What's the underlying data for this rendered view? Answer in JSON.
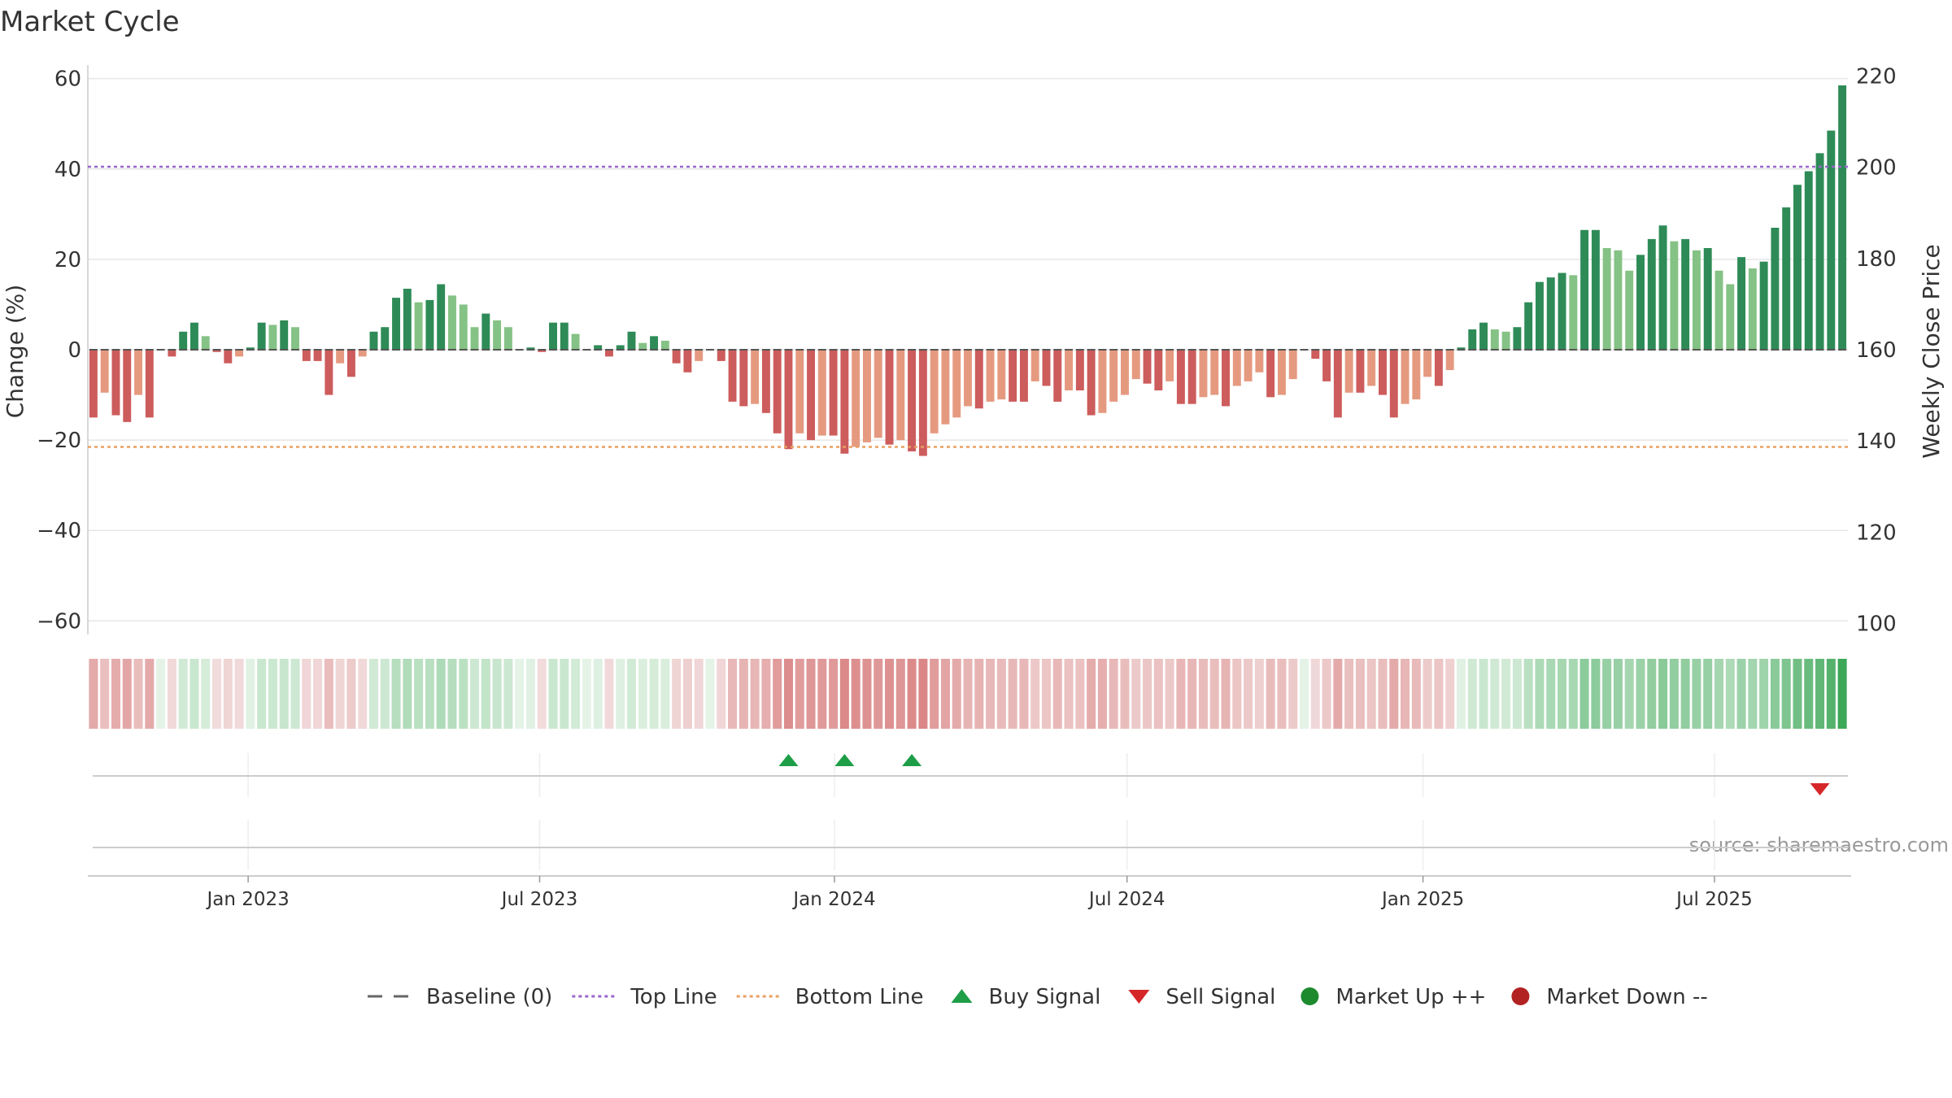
{
  "chart_data": {
    "type": "bar",
    "title": "Market Cycle",
    "ylabel": "Change (%)",
    "y2label": "Weekly Close Price",
    "ylim": [
      -63,
      63
    ],
    "y2lim": [
      97.6,
      222.4
    ],
    "yticks": [
      -60,
      -40,
      -20,
      0,
      20,
      40,
      60
    ],
    "y2ticks": [
      100,
      120,
      140,
      160,
      180,
      200,
      220
    ],
    "xticks": [
      {
        "label": "Jan 2023",
        "index": 14.3
      },
      {
        "label": "Jul 2023",
        "index": 40.3
      },
      {
        "label": "Jan 2024",
        "index": 66.6
      },
      {
        "label": "Jul 2024",
        "index": 92.7
      },
      {
        "label": "Jan 2025",
        "index": 119.1
      },
      {
        "label": "Jul 2025",
        "index": 145.1
      }
    ],
    "top_line": 40.5,
    "bottom_line": -21.5,
    "baseline": 0,
    "changes": [
      -15,
      -9.5,
      -14.5,
      -16,
      -10,
      -15,
      0,
      -1.5,
      4,
      6,
      3,
      -0.5,
      -3,
      -1.5,
      0.5,
      6,
      5.5,
      6.5,
      5,
      -2.5,
      -2.5,
      -10,
      -3,
      -6,
      -1.5,
      4,
      5,
      11.5,
      13.5,
      10.5,
      11,
      14.5,
      12,
      10,
      5,
      8,
      6.5,
      5,
      0,
      0.5,
      -0.5,
      6,
      6,
      3.5,
      0,
      1,
      -1.5,
      1,
      4,
      1.5,
      3,
      2,
      -3,
      -5,
      -2.5,
      0,
      -2.5,
      -11.5,
      -12.5,
      -12,
      -14,
      -18.5,
      -22,
      -18.5,
      -20,
      -19,
      -19,
      -23,
      -21.5,
      -20.5,
      -19.5,
      -21,
      -20,
      -22.5,
      -23.5,
      -18.5,
      -16.5,
      -15,
      -12.5,
      -13,
      -11.5,
      -11,
      -11.5,
      -11.5,
      -7,
      -8,
      -11.5,
      -9,
      -9,
      -14.5,
      -14,
      -11.5,
      -10,
      -6.5,
      -7.5,
      -9,
      -7,
      -12,
      -12,
      -10.5,
      -10,
      -12.5,
      -8,
      -7,
      -5,
      -10.5,
      -10,
      -6.5,
      0,
      -2,
      -7,
      -15,
      -9.5,
      -9.5,
      -8,
      -10,
      -15,
      -12,
      -11,
      -6,
      -8,
      -4.5,
      0.5,
      4.5,
      6,
      4.5,
      4,
      5,
      10.5,
      15,
      16,
      17,
      16.5,
      26.5,
      26.5,
      22.5,
      22,
      17.5,
      21,
      24.5,
      27.5,
      24,
      24.5,
      22,
      22.5,
      17.5,
      14.5,
      20.5,
      18,
      19.5,
      27,
      31.5,
      36.5,
      39.5,
      43.5,
      48.5,
      58.5
    ],
    "buy_signals": [
      62,
      67,
      73
    ],
    "sell_signals": [
      154
    ],
    "source": "source: sharemaestro.com",
    "legend": [
      {
        "label": "Baseline (0)",
        "symbol": "dash",
        "color": "#666666"
      },
      {
        "label": "Top Line",
        "symbol": "dot-line",
        "color": "#9966cc"
      },
      {
        "label": "Bottom Line",
        "symbol": "dot-line",
        "color": "#e8a060"
      },
      {
        "label": "Buy Signal",
        "symbol": "triangle-up",
        "color": "#1f9e48"
      },
      {
        "label": "Sell Signal",
        "symbol": "triangle-down",
        "color": "#d62728"
      },
      {
        "label": "Market Up ++",
        "symbol": "circle",
        "color": "#1e8a2e"
      },
      {
        "label": "Market Down --",
        "symbol": "circle",
        "color": "#b22222"
      }
    ],
    "legend_position": "bottom"
  }
}
